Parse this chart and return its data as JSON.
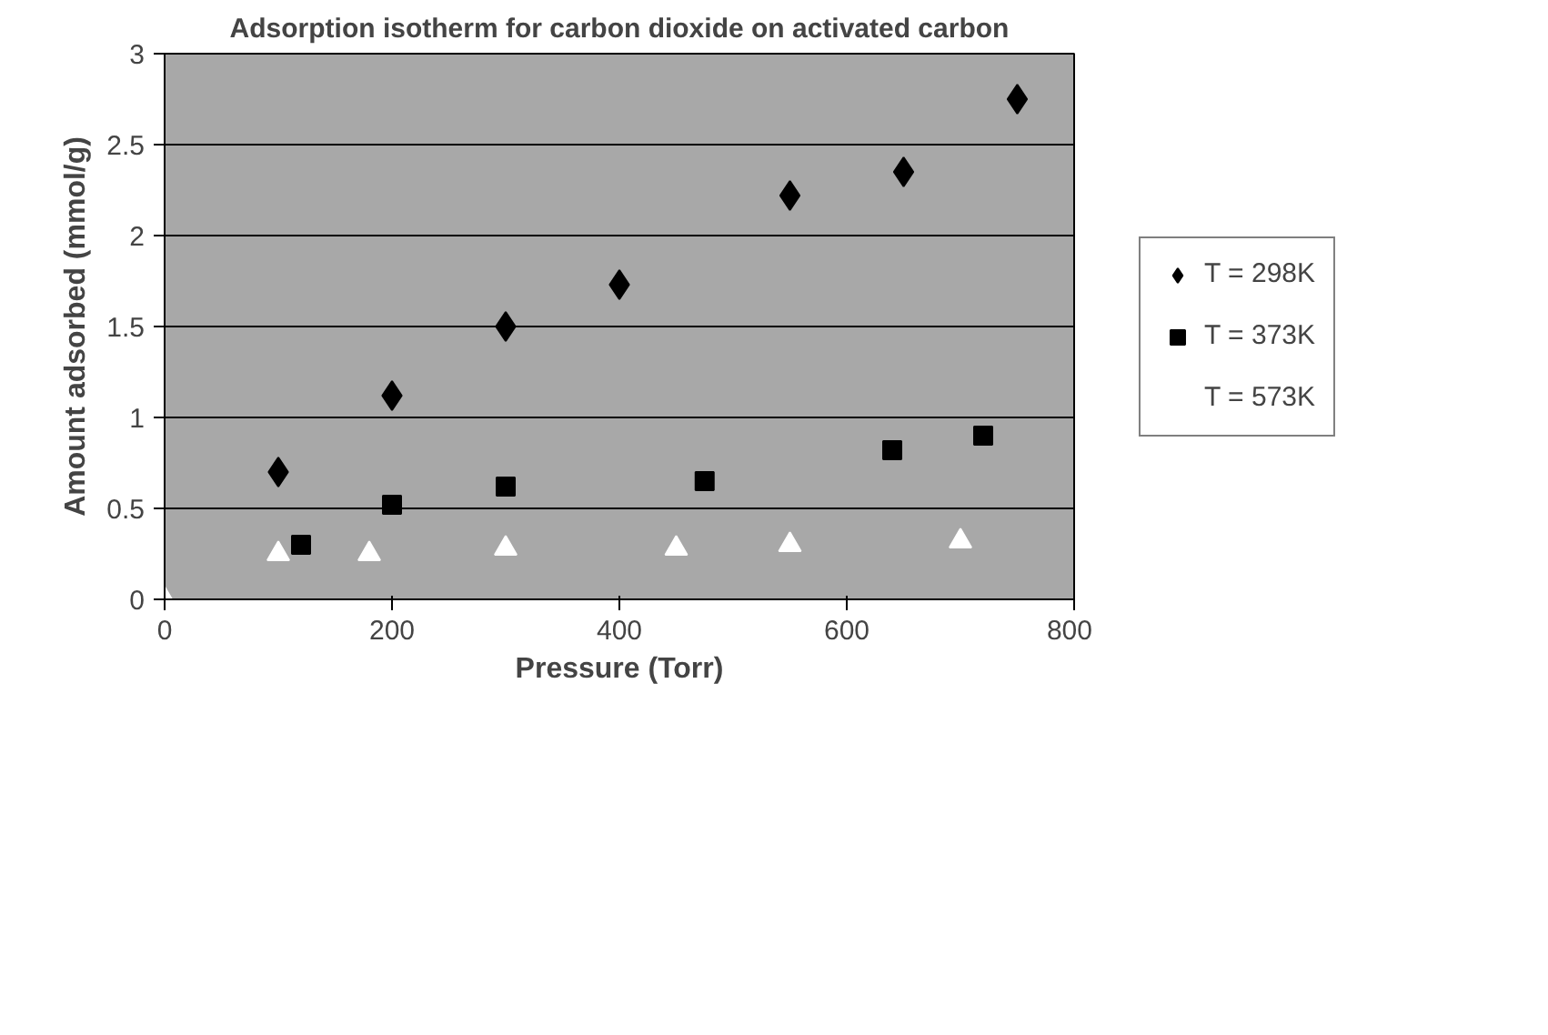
{
  "chart_data": {
    "type": "scatter",
    "title": "Adsorption isotherm for carbon dioxide on activated carbon",
    "xlabel": "Pressure (Torr)",
    "ylabel": "Amount adsorbed (mmol/g)",
    "xlim": [
      0,
      800
    ],
    "xticks": [
      0,
      200,
      400,
      600,
      800
    ],
    "ylim": [
      0,
      3
    ],
    "yticks": [
      0,
      0.5,
      1,
      1.5,
      2,
      2.5,
      3
    ],
    "grid": "y",
    "legend": "right",
    "series": [
      {
        "name": "T = 298K",
        "color": "#000000",
        "marker": "diamond",
        "x": [
          100,
          200,
          300,
          400,
          550,
          650,
          750
        ],
        "values": [
          0.7,
          1.12,
          1.5,
          1.73,
          2.22,
          2.35,
          2.75
        ]
      },
      {
        "name": "T = 373K",
        "color": "#000000",
        "marker": "square",
        "x": [
          120,
          200,
          300,
          475,
          640,
          720
        ],
        "values": [
          0.3,
          0.52,
          0.62,
          0.65,
          0.82,
          0.9
        ]
      },
      {
        "name": "T = 573K",
        "color": "#ffffff",
        "marker": "triangle",
        "x": [
          0,
          100,
          180,
          300,
          450,
          550,
          700
        ],
        "values": [
          0,
          0.25,
          0.25,
          0.28,
          0.28,
          0.3,
          0.32
        ]
      }
    ]
  }
}
